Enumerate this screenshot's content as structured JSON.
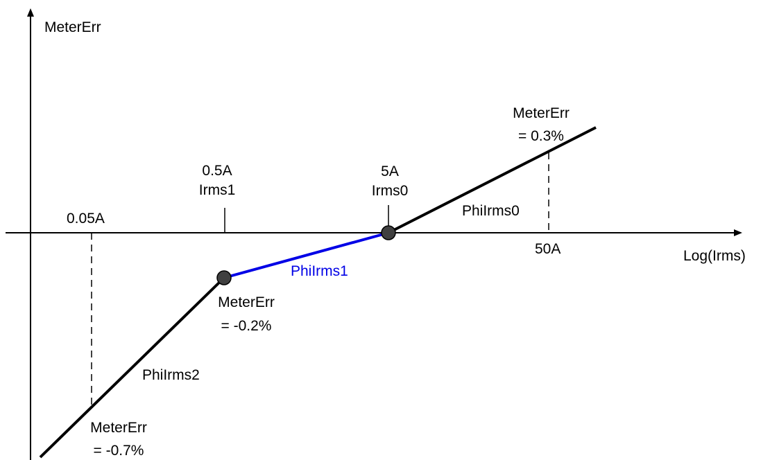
{
  "axes": {
    "y_label": "MeterErr",
    "x_label": "Log(Irms)"
  },
  "ticks": {
    "t005": "0.05A",
    "t05_value": "0.5A",
    "t05_name": "Irms1",
    "t5_value": "5A",
    "t5_name": "Irms0",
    "t50": "50A"
  },
  "segments": {
    "seg0": "PhiIrms0",
    "seg1": "PhiIrms1",
    "seg2": "PhiIrms2"
  },
  "points": {
    "p03_name": "MeterErr",
    "p03_value": "= 0.3%",
    "pm02_name": "MeterErr",
    "pm02_value": "= -0.2%",
    "pm07_name": "MeterErr",
    "pm07_value": "= -0.7%"
  },
  "colors": {
    "line": "#000000",
    "highlight": "#0000e6",
    "node": "#404040"
  }
}
